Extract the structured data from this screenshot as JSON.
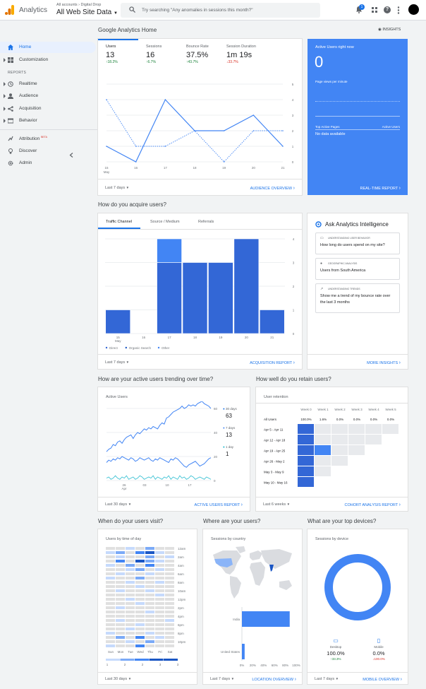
{
  "header": {
    "app_name": "Analytics",
    "account_path": "All accounts › Digital Drop",
    "view_name": "All Web Site Data",
    "search_placeholder": "Try searching \"Any anomalies in sessions this month?\"",
    "notification_count": "1"
  },
  "sidebar": {
    "items": [
      {
        "label": "Home",
        "icon": "home-icon"
      },
      {
        "label": "Customization",
        "icon": "customization-icon"
      }
    ],
    "reports_header": "REPORTS",
    "reports": [
      {
        "label": "Realtime",
        "icon": "clock-icon"
      },
      {
        "label": "Audience",
        "icon": "person-icon"
      },
      {
        "label": "Acquisition",
        "icon": "acquisition-icon"
      },
      {
        "label": "Behavior",
        "icon": "behavior-icon"
      }
    ],
    "attribution": {
      "label": "Attribution",
      "badge": "BETA"
    },
    "discover": {
      "label": "Discover",
      "icon": "lightbulb-icon"
    },
    "admin": {
      "label": "Admin",
      "icon": "gear-icon"
    }
  },
  "home": {
    "title": "Google Analytics Home",
    "insights": "INSIGHTS"
  },
  "overview": {
    "metrics": [
      {
        "label": "Users",
        "value": "13",
        "change": "18.2%",
        "up": true
      },
      {
        "label": "Sessions",
        "value": "16",
        "change": "6.7%",
        "up": true
      },
      {
        "label": "Bounce Rate",
        "value": "37.5%",
        "change": "43.7%",
        "up": true
      },
      {
        "label": "Session Duration",
        "value": "1m 19s",
        "change": "33.7%",
        "up": false
      }
    ],
    "date_range": "Last 7 days",
    "link": "AUDIENCE OVERVIEW",
    "chart_data": {
      "type": "line",
      "x": [
        "15",
        "16",
        "17",
        "18",
        "19",
        "20",
        "21"
      ],
      "x_sub": "May",
      "y_ticks": [
        "0",
        "1",
        "2",
        "3",
        "4",
        "5"
      ],
      "series": [
        {
          "values": [
            1,
            0,
            4,
            2,
            2,
            3,
            1
          ]
        },
        {
          "values": [
            4,
            1,
            1,
            2,
            0,
            2,
            2
          ],
          "dashed": true
        }
      ],
      "ylim": [
        0,
        5
      ]
    }
  },
  "realtime": {
    "title": "Active Users right now",
    "value": "0",
    "page_views_label": "Page views per minute",
    "top_pages_label": "Top Active Pages",
    "active_users_label": "Active Users",
    "no_data": "No data available",
    "link": "REAL-TIME REPORT"
  },
  "acquire": {
    "title": "How do you acquire users?",
    "tabs": [
      "Traffic Channel",
      "Source / Medium",
      "Referrals"
    ],
    "date_range": "Last 7 days",
    "link": "ACQUISITION REPORT",
    "chart_data": {
      "type": "bar",
      "categories": [
        "15",
        "16",
        "17",
        "18",
        "19",
        "20",
        "21"
      ],
      "x_sub": "May",
      "y_ticks": [
        "0",
        "1",
        "2",
        "3",
        "4"
      ],
      "ylim": [
        0,
        4
      ],
      "series": [
        {
          "name": "Direct",
          "values": [
            1,
            0,
            3,
            3,
            3,
            4,
            1
          ],
          "color": "#3367d6"
        },
        {
          "name": "Organic Search",
          "values": [
            0,
            0,
            0,
            0,
            0,
            0,
            0
          ],
          "color": "#1a56c4"
        },
        {
          "name": "Other",
          "values": [
            0,
            0,
            1,
            0,
            0,
            0,
            0
          ],
          "color": "#4285f4"
        }
      ]
    }
  },
  "intelligence": {
    "title": "Ask Analytics Intelligence",
    "items": [
      {
        "category": "UNDERSTANDING USER BEHAVIOR",
        "question": "How long do users spend on my site?"
      },
      {
        "category": "GEOGRAPHIC ANALYSIS",
        "question": "Users from South America"
      },
      {
        "category": "UNDERSTANDING TRENDS",
        "question": "Show me a trend of my bounce rate over the last 3 months"
      }
    ],
    "link": "MORE INSIGHTS"
  },
  "trending": {
    "title": "How are your active users trending over time?",
    "subtitle": "Active Users",
    "legend": [
      {
        "label": "30 days",
        "value": "63",
        "color": "#1a73e8"
      },
      {
        "label": "7 days",
        "value": "13",
        "color": "#4285f4"
      },
      {
        "label": "1 day",
        "value": "1",
        "color": "#12b5cb"
      }
    ],
    "date_range": "Last 30 days",
    "link": "ACTIVE USERS REPORT",
    "chart_data": {
      "type": "line",
      "x_ticks": [
        "26",
        "03",
        "10",
        "17"
      ],
      "x_sub": "Apr",
      "y_ticks": [
        "0",
        "20",
        "40",
        "60"
      ],
      "ylim": [
        0,
        60
      ],
      "series": [
        {
          "name": "30 days",
          "values": [
            24,
            26,
            27,
            30,
            29,
            32,
            33,
            31,
            34,
            36,
            37,
            38,
            35,
            38,
            40,
            39,
            41,
            43,
            42,
            44,
            43,
            45,
            44,
            43,
            46,
            48,
            47,
            52,
            53,
            55,
            57,
            58,
            59,
            60,
            62,
            60,
            61,
            63,
            62,
            63,
            62,
            64,
            65,
            66,
            64,
            63,
            62,
            60
          ]
        },
        {
          "name": "7 days",
          "values": [
            15,
            17,
            16,
            18,
            17,
            19,
            18,
            20,
            19,
            18,
            17,
            19,
            18,
            16,
            17,
            19,
            18,
            17,
            18,
            19,
            17,
            16,
            18,
            17,
            19,
            18,
            17,
            16,
            15,
            18,
            17,
            19,
            18,
            16,
            14,
            12,
            11,
            13,
            14,
            15,
            16,
            14,
            12,
            13,
            14,
            16,
            18,
            19
          ]
        },
        {
          "name": "1 day",
          "values": [
            2,
            3,
            1,
            2,
            4,
            2,
            1,
            3,
            2,
            4,
            1,
            2,
            3,
            1,
            2,
            4,
            3,
            1,
            2,
            3,
            2,
            4,
            1,
            3,
            2,
            1,
            3,
            2,
            4,
            1,
            3,
            2,
            1,
            4,
            2,
            3,
            1,
            2,
            4,
            3,
            1,
            2,
            3,
            2,
            1,
            3,
            2,
            1
          ]
        }
      ]
    }
  },
  "retention": {
    "title": "How well do you retain users?",
    "subtitle": "User retention",
    "columns": [
      "Week 0",
      "Week 1",
      "Week 2",
      "Week 3",
      "Week 4",
      "Week 5"
    ],
    "all_users": {
      "label": "All Users",
      "values": [
        "100.0%",
        "1.6%",
        "0.0%",
        "0.0%",
        "0.0%",
        "0.0%"
      ]
    },
    "rows": [
      {
        "label": "Apr 5 - Apr 11",
        "cells": [
          100,
          0,
          0,
          0,
          0,
          0
        ]
      },
      {
        "label": "Apr 12 - Apr 18",
        "cells": [
          100,
          0,
          0,
          0,
          0
        ]
      },
      {
        "label": "Apr 19 - Apr 25",
        "cells": [
          100,
          9,
          0,
          0
        ]
      },
      {
        "label": "Apr 26 - May 2",
        "cells": [
          100,
          0,
          0
        ]
      },
      {
        "label": "May 3 - May 9",
        "cells": [
          100,
          0
        ]
      },
      {
        "label": "May 10 - May 16",
        "cells": [
          100
        ]
      }
    ],
    "date_range": "Last 6 weeks",
    "link": "COHORT ANALYSIS REPORT"
  },
  "visit": {
    "title": "When do your users visit?",
    "subtitle": "Users by time of day",
    "hours": [
      "12am",
      "2am",
      "4am",
      "6am",
      "8am",
      "10am",
      "12pm",
      "2pm",
      "4pm",
      "6pm",
      "8pm",
      "10pm"
    ],
    "days": [
      "Sun",
      "Mon",
      "Tue",
      "Wed",
      "Thu",
      "Fri",
      "Sat"
    ],
    "scale": [
      "1",
      "2",
      "2",
      "3",
      "3"
    ],
    "date_range": "Last 30 days"
  },
  "where": {
    "title": "Where are your users?",
    "subtitle": "Sessions by country",
    "date_range": "Last 7 days",
    "link": "LOCATION OVERVIEW",
    "chart_data": {
      "type": "bar",
      "orientation": "horizontal",
      "categories": [
        "India",
        "United States"
      ],
      "values": [
        88,
        5
      ],
      "x_ticks": [
        "0%",
        "20%",
        "40%",
        "60%",
        "80%",
        "100%"
      ],
      "xlim": [
        0,
        100
      ]
    }
  },
  "devices": {
    "title": "What are your top devices?",
    "subtitle": "Sessions by device",
    "items": [
      {
        "name": "Desktop",
        "value": "100.0%",
        "change": "33.3%",
        "up": true,
        "icon": "desktop-icon"
      },
      {
        "name": "Mobile",
        "value": "0.0%",
        "change": "100.0%",
        "up": false,
        "icon": "mobile-icon"
      }
    ],
    "date_range": "Last 7 days",
    "link": "MOBILE OVERVIEW",
    "chart_data": {
      "type": "pie",
      "categories": [
        "Desktop",
        "Mobile"
      ],
      "values": [
        100,
        0
      ]
    }
  }
}
